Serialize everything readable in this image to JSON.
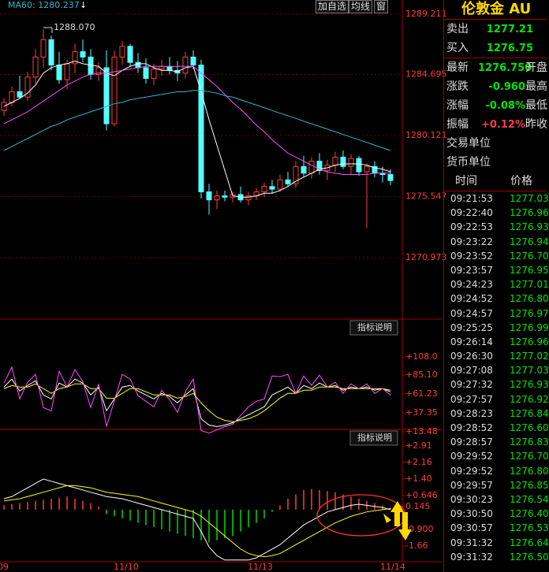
{
  "toolbar": {
    "buttons": [
      "加自选",
      "均线",
      "窗"
    ]
  },
  "chart_data": [
    {
      "type": "candlestick",
      "legend": "MA60: 1280.237",
      "annotation": "1288.070",
      "ylim": [
        1266.37,
        1289.8
      ],
      "yticks": [
        1289.211,
        1284.695,
        1280.121,
        1275.547,
        1270.973
      ],
      "grid": true,
      "up_color": "#ff3c3c",
      "down_color": "#54ffff",
      "open": [
        1282.0,
        1282.6,
        1283.4,
        1283.0,
        1284.5,
        1286.0,
        1287.3,
        1285.4,
        1284.3,
        1285.5,
        1286.4,
        1286.0,
        1284.7,
        1285.2,
        1281.0,
        1286.0,
        1286.8,
        1285.6,
        1285.2,
        1284.4,
        1285.1,
        1285.3,
        1285.0,
        1284.8,
        1286.0,
        1285.4,
        1275.9,
        1275.3,
        1275.6,
        1275.5,
        1275.7,
        1275.3,
        1275.6,
        1275.9,
        1276.3,
        1276.1,
        1276.8,
        1276.5,
        1277.8,
        1277.3,
        1278.2,
        1277.5,
        1277.9,
        1278.5,
        1277.8,
        1278.4,
        1277.4,
        1277.8,
        1277.3,
        1277.2
      ],
      "high": [
        1282.9,
        1283.8,
        1284.6,
        1284.9,
        1286.6,
        1288.07,
        1287.6,
        1286.4,
        1285.8,
        1287.0,
        1287.3,
        1286.6,
        1285.6,
        1286.5,
        1286.5,
        1287.2,
        1287.0,
        1286.3,
        1285.9,
        1285.5,
        1285.8,
        1286.0,
        1285.7,
        1286.4,
        1286.5,
        1285.8,
        1276.5,
        1276.0,
        1276.0,
        1275.9,
        1276.3,
        1275.9,
        1276.2,
        1276.6,
        1276.8,
        1277.2,
        1277.4,
        1278.2,
        1278.6,
        1278.5,
        1278.8,
        1278.3,
        1278.9,
        1279.0,
        1278.7,
        1278.6,
        1278.0,
        1278.2,
        1277.8,
        1277.6
      ],
      "low": [
        1281.6,
        1282.3,
        1282.9,
        1282.7,
        1284.0,
        1285.2,
        1285.0,
        1284.0,
        1283.6,
        1284.8,
        1285.6,
        1284.3,
        1284.2,
        1280.5,
        1280.8,
        1285.4,
        1285.3,
        1284.8,
        1284.0,
        1283.9,
        1284.6,
        1284.7,
        1284.2,
        1284.4,
        1285.1,
        1275.4,
        1274.2,
        1274.6,
        1275.2,
        1275.1,
        1275.1,
        1274.9,
        1275.3,
        1275.5,
        1275.8,
        1275.9,
        1276.3,
        1276.2,
        1277.0,
        1276.9,
        1277.2,
        1276.8,
        1277.4,
        1277.6,
        1277.2,
        1277.1,
        1273.2,
        1277.0,
        1276.6,
        1276.4
      ],
      "close": [
        1282.6,
        1283.4,
        1283.0,
        1284.5,
        1286.0,
        1287.3,
        1285.4,
        1284.3,
        1285.5,
        1286.4,
        1286.0,
        1284.7,
        1285.2,
        1281.0,
        1286.0,
        1286.8,
        1285.6,
        1285.2,
        1284.4,
        1285.1,
        1285.3,
        1285.0,
        1284.8,
        1286.0,
        1285.4,
        1275.9,
        1275.3,
        1275.6,
        1275.5,
        1275.7,
        1275.3,
        1275.6,
        1275.9,
        1276.3,
        1276.1,
        1276.8,
        1276.5,
        1277.8,
        1277.3,
        1278.2,
        1277.5,
        1277.9,
        1278.5,
        1277.8,
        1278.4,
        1277.4,
        1277.8,
        1277.3,
        1277.2,
        1276.75
      ],
      "series": [
        {
          "color": "#ffffff",
          "values": [
            1282.3,
            1282.6,
            1282.9,
            1283.3,
            1283.9,
            1284.8,
            1285.2,
            1285.4,
            1285.5,
            1285.7,
            1285.5,
            1285.4,
            1285.3,
            1284.8,
            1284.6,
            1285.0,
            1285.3,
            1285.5,
            1285.5,
            1285.2,
            1285.0,
            1285.0,
            1284.9,
            1285.2,
            1285.3,
            1283.4,
            1281.3,
            1279.4,
            1277.5,
            1275.6,
            1275.5,
            1275.5,
            1275.6,
            1275.8,
            1275.8,
            1276.0,
            1276.3,
            1276.7,
            1277.0,
            1277.3,
            1277.6,
            1277.7,
            1277.9,
            1278.0,
            1278.0,
            1278.0,
            1277.9,
            1277.7,
            1277.6,
            1277.4
          ]
        },
        {
          "color": "#ff4cff",
          "values": [
            1281.0,
            1281.3,
            1281.6,
            1281.9,
            1282.3,
            1282.7,
            1283.1,
            1283.5,
            1283.9,
            1284.2,
            1284.5,
            1284.7,
            1284.8,
            1284.8,
            1284.9,
            1285.0,
            1285.1,
            1285.2,
            1285.3,
            1285.3,
            1285.3,
            1285.3,
            1285.3,
            1285.3,
            1285.3,
            1284.8,
            1284.3,
            1283.8,
            1283.2,
            1282.6,
            1282.1,
            1281.5,
            1280.9,
            1280.4,
            1279.8,
            1279.3,
            1278.8,
            1278.5,
            1278.2,
            1277.9,
            1277.6,
            1277.4,
            1277.3,
            1277.2,
            1277.2,
            1277.2,
            1277.2,
            1277.3,
            1277.3,
            1277.3
          ]
        },
        {
          "color": "#2fb7c9",
          "values": [
            1279.0,
            1279.3,
            1279.6,
            1279.9,
            1280.2,
            1280.5,
            1280.8,
            1281.0,
            1281.3,
            1281.5,
            1281.7,
            1281.9,
            1282.1,
            1282.3,
            1282.5,
            1282.6,
            1282.8,
            1282.9,
            1283.0,
            1283.1,
            1283.2,
            1283.3,
            1283.4,
            1283.4,
            1283.5,
            1283.5,
            1283.4,
            1283.3,
            1283.1,
            1283.0,
            1282.8,
            1282.6,
            1282.4,
            1282.2,
            1282.0,
            1281.8,
            1281.6,
            1281.4,
            1281.2,
            1281.0,
            1280.8,
            1280.6,
            1280.4,
            1280.2,
            1280.0,
            1279.8,
            1279.6,
            1279.4,
            1279.2,
            1279.0
          ]
        }
      ]
    },
    {
      "type": "line",
      "note": "指标说明",
      "ylim": [
        6.6,
        130.9
      ],
      "grid": false,
      "yticks": [
        {
          "value": 108.0,
          "label": "+108.0"
        },
        {
          "value": 85.1,
          "label": "+85.10"
        },
        {
          "value": 61.23,
          "label": "+61.23"
        },
        {
          "value": 37.35,
          "label": "+37.35"
        },
        {
          "value": 13.48,
          "label": "+13.48"
        }
      ],
      "series": [
        {
          "color": "#ffffff",
          "values": [
            70,
            80,
            65,
            72,
            78,
            60,
            55,
            75,
            70,
            80,
            75,
            60,
            70,
            40,
            55,
            70,
            72,
            65,
            60,
            55,
            62,
            58,
            50,
            60,
            68,
            30,
            22,
            20,
            22,
            25,
            30,
            35,
            40,
            45,
            60,
            65,
            70,
            62,
            72,
            68,
            75,
            70,
            72,
            66,
            70,
            68,
            70,
            66,
            68,
            64
          ]
        },
        {
          "color": "#ffff00",
          "values": [
            68,
            72,
            70,
            70,
            74,
            68,
            62,
            68,
            70,
            74,
            74,
            68,
            68,
            56,
            56,
            62,
            68,
            68,
            64,
            60,
            60,
            60,
            56,
            58,
            62,
            50,
            40,
            32,
            28,
            26,
            28,
            30,
            34,
            40,
            48,
            56,
            62,
            62,
            66,
            66,
            70,
            70,
            70,
            68,
            68,
            68,
            68,
            68,
            68,
            66
          ]
        },
        {
          "color": "#ff4cff",
          "values": [
            75,
            95,
            55,
            76,
            86,
            44,
            40,
            90,
            70,
            92,
            77,
            44,
            74,
            20,
            53,
            86,
            80,
            59,
            52,
            45,
            66,
            54,
            38,
            64,
            80,
            15,
            12,
            16,
            20,
            23,
            34,
            45,
            52,
            55,
            84,
            83,
            86,
            62,
            84,
            72,
            85,
            70,
            76,
            62,
            74,
            68,
            74,
            62,
            68,
            60
          ]
        }
      ]
    },
    {
      "type": "bar",
      "note": "指标说明",
      "ylim": [
        -2.38,
        3.13
      ],
      "grid": false,
      "yticks": [
        {
          "value": 2.91,
          "label": "+2.91"
        },
        {
          "value": 2.16,
          "label": "+2.16"
        },
        {
          "value": 1.4,
          "label": "+1.40"
        },
        {
          "value": 0.646,
          "label": "+0.646"
        },
        0.145,
        {
          "value": -0.9,
          "label": "-0.900"
        },
        -1.66
      ],
      "x_labels": [
        "09",
        "11/10",
        "11/13",
        "11/14"
      ],
      "up_color": "#ff3c3c",
      "down_color": "#00d800",
      "values": [
        0.2,
        0.25,
        0.3,
        0.35,
        0.4,
        0.45,
        0.5,
        0.55,
        0.6,
        0.5,
        0.4,
        0.3,
        0.15,
        -0.2,
        -0.3,
        -0.4,
        -0.5,
        -0.6,
        -0.7,
        -0.8,
        -0.9,
        -1.0,
        -1.1,
        -1.2,
        -1.3,
        -1.4,
        -1.5,
        -1.4,
        -1.3,
        -1.2,
        -1.0,
        -0.8,
        -0.6,
        -0.4,
        -0.1,
        0.2,
        0.5,
        0.7,
        0.9,
        0.95,
        0.9,
        0.85,
        0.8,
        0.7,
        0.6,
        0.5,
        0.4,
        0.3,
        0.2,
        0.1
      ],
      "series": [
        {
          "color": "#ffffff",
          "values": [
            0.5,
            0.6,
            0.8,
            1.0,
            1.2,
            1.4,
            1.3,
            1.2,
            1.1,
            1.0,
            0.9,
            0.8,
            0.7,
            0.6,
            0.55,
            0.5,
            0.4,
            0.3,
            0.2,
            0.1,
            0.0,
            -0.1,
            -0.2,
            -0.3,
            -0.4,
            -1.0,
            -1.7,
            -2.1,
            -2.3,
            -2.3,
            -2.3,
            -2.3,
            -2.2,
            -2.0,
            -1.8,
            -1.6,
            -1.3,
            -1.0,
            -0.7,
            -0.5,
            -0.3,
            -0.1,
            0.0,
            0.1,
            0.2,
            0.25,
            0.2,
            0.15,
            0.1,
            0.0
          ]
        },
        {
          "color": "#ffff00",
          "values": [
            0.4,
            0.45,
            0.5,
            0.6,
            0.7,
            0.8,
            0.9,
            1.0,
            1.1,
            1.1,
            1.05,
            1.0,
            0.9,
            0.8,
            0.75,
            0.7,
            0.65,
            0.6,
            0.5,
            0.4,
            0.3,
            0.2,
            0.1,
            0.0,
            -0.1,
            -0.3,
            -0.6,
            -0.9,
            -1.2,
            -1.5,
            -1.8,
            -2.0,
            -2.1,
            -2.15,
            -2.1,
            -2.0,
            -1.8,
            -1.6,
            -1.4,
            -1.2,
            -1.0,
            -0.8,
            -0.6,
            -0.45,
            -0.3,
            -0.2,
            -0.1,
            -0.05,
            0.0,
            0.05
          ]
        }
      ]
    }
  ],
  "quote": {
    "title": "伦敦金 AU",
    "rows": [
      {
        "label": "卖出",
        "value": "1277.21",
        "color": "#00e600"
      },
      {
        "label": "买入",
        "value": "1276.75",
        "color": "#00e600"
      }
    ],
    "stats": [
      {
        "label": "最新",
        "value": "1276.750",
        "extra": "开盘",
        "color": "#00e600"
      },
      {
        "label": "涨跌",
        "value": "-0.960",
        "extra": "最高",
        "color": "#00e600"
      },
      {
        "label": "涨幅",
        "value": "-0.08%",
        "extra": "最低",
        "color": "#00e600"
      },
      {
        "label": "振幅",
        "value": "+0.12%",
        "extra": "昨收",
        "color": "#ff3c3c"
      }
    ],
    "units": [
      "交易单位",
      "货币单位"
    ]
  },
  "trades": {
    "columns": [
      "时间",
      "价格"
    ],
    "color": "#00e600",
    "rows": [
      [
        "09:21:53",
        "1277.03"
      ],
      [
        "09:22:40",
        "1276.96"
      ],
      [
        "09:22:53",
        "1276.93"
      ],
      [
        "09:23:22",
        "1276.94"
      ],
      [
        "09:23:52",
        "1276.70"
      ],
      [
        "09:23:57",
        "1276.95"
      ],
      [
        "09:24:23",
        "1277.01"
      ],
      [
        "09:24:52",
        "1276.80"
      ],
      [
        "09:24:57",
        "1276.97"
      ],
      [
        "09:25:25",
        "1276.99"
      ],
      [
        "09:26:14",
        "1276.96"
      ],
      [
        "09:26:30",
        "1277.02"
      ],
      [
        "09:27:08",
        "1277.03"
      ],
      [
        "09:27:32",
        "1276.93"
      ],
      [
        "09:27:57",
        "1276.92"
      ],
      [
        "09:28:23",
        "1276.84"
      ],
      [
        "09:28:52",
        "1276.60"
      ],
      [
        "09:28:57",
        "1276.83"
      ],
      [
        "09:29:52",
        "1276.70"
      ],
      [
        "09:29:52",
        "1276.80"
      ],
      [
        "09:29:57",
        "1276.85"
      ],
      [
        "09:30:23",
        "1276.54"
      ],
      [
        "09:30:50",
        "1276.40"
      ],
      [
        "09:30:57",
        "1276.53"
      ],
      [
        "09:31:32",
        "1276.64"
      ],
      [
        "09:31:32",
        "1276.50"
      ]
    ]
  }
}
